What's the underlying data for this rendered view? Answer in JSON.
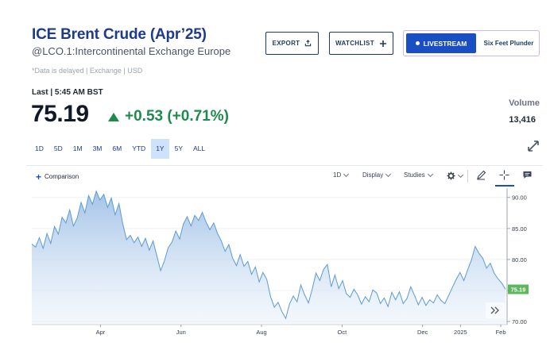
{
  "header": {
    "title": "ICE Brent Crude (Apr’25)",
    "symbol_line": "@LCO.1:Intercontinental Exchange Europe",
    "delayed_note": "*Data is delayed | Exchange | USD"
  },
  "actions": {
    "export_label": "EXPORT",
    "watchlist_label": "WATCHLIST",
    "livestream_label": "LIVESTREAM",
    "livestream_show": "Six Feet Plunder"
  },
  "quote": {
    "last_label": "Last | 5:45 AM BST",
    "price": "75.19",
    "change": "+0.53 (+0.71%)",
    "volume_label": "Volume",
    "volume_value": "13,416"
  },
  "ranges": {
    "items": [
      "1D",
      "5D",
      "1M",
      "3M",
      "6M",
      "YTD",
      "1Y",
      "5Y",
      "ALL"
    ],
    "active": "1Y"
  },
  "toolbar": {
    "comparison_label": "Comparison",
    "interval_label": "1D",
    "display_label": "Display",
    "studies_label": "Studies"
  },
  "colors": {
    "brand": "#1e3a8a",
    "positive": "#1e8a4c",
    "live": "#1a4fc4",
    "line": "#5b9bd5",
    "last_tag": "#5cb85c"
  },
  "icons": [
    "share-icon",
    "plus-icon",
    "expand-icon",
    "settings-icon",
    "pencil-icon",
    "crosshair-icon",
    "chat-icon",
    "double-chevron-right-icon"
  ],
  "chart_data": {
    "type": "area",
    "title": "",
    "xlabel": "",
    "ylabel": "",
    "x_tick_labels": [
      "Apr",
      "Jun",
      "Aug",
      "Oct",
      "Dec",
      "2025",
      "Feb"
    ],
    "y_tick_labels": [
      "90.00",
      "85.00",
      "80.00",
      "75.00",
      "70.00"
    ],
    "ylim": [
      69.5,
      91.5
    ],
    "last_value_label": "75.19",
    "series": [
      {
        "values": [
          82.5,
          82.0,
          83.5,
          81.8,
          84.2,
          82.6,
          85.3,
          84.1,
          86.8,
          85.9,
          88.0,
          85.4,
          86.7,
          89.2,
          87.5,
          90.3,
          88.9,
          91.0,
          89.6,
          90.5,
          88.4,
          89.9,
          87.2,
          89.0,
          85.8,
          83.2,
          83.9,
          82.7,
          83.6,
          82.1,
          83.4,
          81.5,
          83.0,
          80.6,
          78.2,
          79.8,
          81.9,
          82.8,
          84.6,
          83.3,
          85.7,
          86.9,
          85.4,
          87.1,
          86.3,
          87.6,
          86.0,
          84.8,
          85.9,
          84.2,
          83.0,
          81.3,
          82.4,
          80.2,
          79.0,
          80.8,
          78.9,
          79.7,
          77.6,
          78.8,
          76.4,
          77.9,
          76.8,
          74.0,
          72.3,
          73.1,
          71.6,
          70.5,
          72.8,
          74.1,
          73.2,
          75.9,
          74.3,
          73.0,
          75.2,
          77.8,
          76.6,
          78.4,
          79.2,
          75.6,
          77.5,
          75.3,
          76.6,
          74.5,
          73.9,
          75.2,
          74.3,
          72.8,
          74.0,
          73.2,
          75.1,
          74.6,
          72.9,
          73.8,
          72.4,
          74.7,
          73.5,
          74.8,
          72.9,
          73.7,
          75.6,
          74.2,
          72.7,
          73.9,
          72.6,
          73.5,
          73.0,
          74.3,
          73.4,
          72.9,
          74.2,
          75.5,
          76.8,
          77.9,
          76.6,
          78.3,
          79.9,
          82.1,
          81.0,
          80.2,
          78.6,
          79.4,
          77.8,
          76.9,
          76.2,
          75.19
        ]
      }
    ]
  }
}
